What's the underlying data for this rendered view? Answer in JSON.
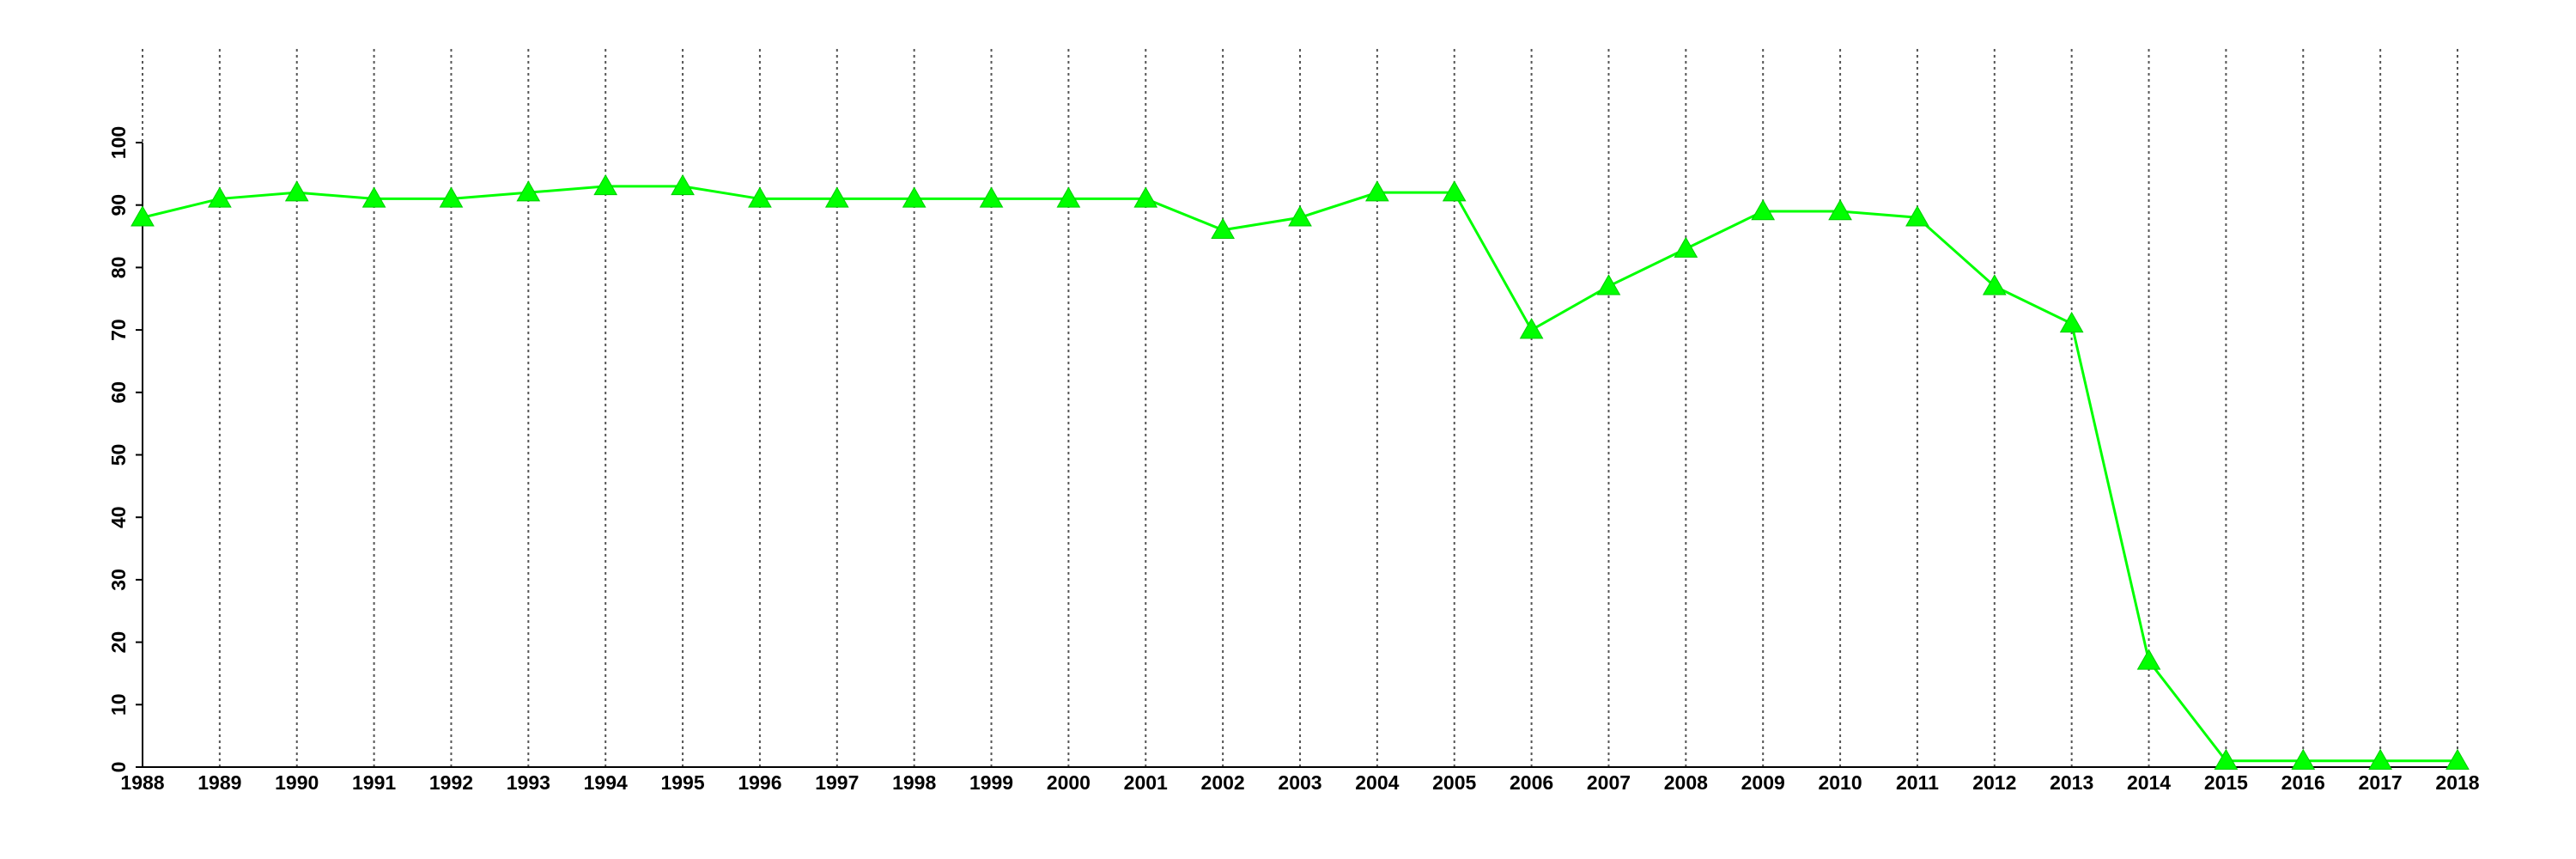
{
  "chart_data": {
    "type": "line",
    "x": [
      1988,
      1989,
      1990,
      1991,
      1992,
      1993,
      1994,
      1995,
      1996,
      1997,
      1998,
      1999,
      2000,
      2001,
      2002,
      2003,
      2004,
      2005,
      2006,
      2007,
      2008,
      2009,
      2010,
      2011,
      2012,
      2013,
      2014,
      2015,
      2016,
      2017,
      2018
    ],
    "values": [
      88,
      91,
      92,
      91,
      91,
      92,
      93,
      93,
      91,
      91,
      91,
      91,
      91,
      91,
      86,
      88,
      92,
      92,
      70,
      77,
      83,
      89,
      89,
      88,
      77,
      71,
      17,
      1,
      1,
      1,
      1
    ],
    "color": "#00ff00",
    "marker": "triangle",
    "xlim": [
      1988,
      2018
    ],
    "xticks": [
      1988,
      1989,
      1990,
      1991,
      1992,
      1993,
      1994,
      1995,
      1996,
      1997,
      1998,
      1999,
      2000,
      2001,
      2002,
      2003,
      2004,
      2005,
      2006,
      2007,
      2008,
      2009,
      2010,
      2011,
      2012,
      2013,
      2014,
      2015,
      2016,
      2017,
      2018
    ],
    "ylim": [
      0,
      100
    ],
    "yticks": [
      0,
      10,
      20,
      30,
      40,
      50,
      60,
      70,
      80,
      90,
      100
    ],
    "grid": "x"
  }
}
